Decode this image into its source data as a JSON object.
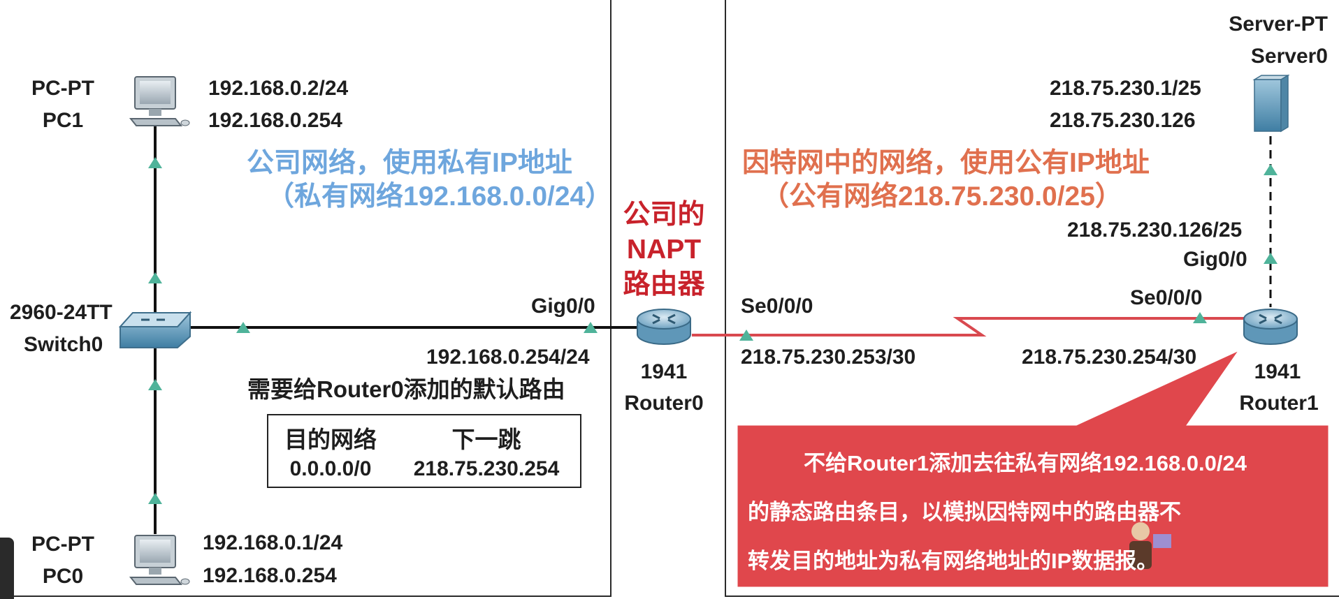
{
  "left_network": {
    "pc1": {
      "type": "PC-PT",
      "name": "PC1",
      "ip": "192.168.0.2/24",
      "gateway": "192.168.0.254"
    },
    "pc0": {
      "type": "PC-PT",
      "name": "PC0",
      "ip": "192.168.0.1/24",
      "gateway": "192.168.0.254"
    },
    "switch": {
      "model": "2960-24TT",
      "name": "Switch0"
    },
    "caption_line1": "公司网络，使用私有IP地址",
    "caption_line2": "（私有网络192.168.0.0/24）",
    "default_route_title": "需要给Router0添加的默认路由",
    "route_table": {
      "headers": [
        "目的网络",
        "下一跳"
      ],
      "row": [
        "0.0.0.0/0",
        "218.75.230.254"
      ]
    }
  },
  "router0": {
    "title_lines": [
      "公司的",
      "NAPT",
      "路由器"
    ],
    "model": "1941",
    "name": "Router0",
    "gig_port": "Gig0/0",
    "gig_ip": "192.168.0.254/24",
    "se_port": "Se0/0/0",
    "se_ip": "218.75.230.253/30"
  },
  "right_network": {
    "caption_line1": "因特网中的网络，使用公有IP地址",
    "caption_line2": "（公有网络218.75.230.0/25）",
    "server": {
      "type": "Server-PT",
      "name": "Server0",
      "ip": "218.75.230.1/25",
      "gateway": "218.75.230.126"
    },
    "router1": {
      "model": "1941",
      "name": "Router1",
      "gig_port": "Gig0/0",
      "gig_ip": "218.75.230.126/25",
      "se_port": "Se0/0/0",
      "se_ip": "218.75.230.254/30"
    },
    "callout_lines": [
      "不给Router1添加去往私有网络192.168.0.0/24",
      "的静态路由条目，以模拟因特网中的路由器不",
      "转发目的地址为私有网络地址的IP数据报。"
    ]
  },
  "colors": {
    "private_caption": "#6ea6dd",
    "public_caption": "#e0704e",
    "router_title": "#c8222b",
    "serial_link": "#d9494f",
    "callout_fill": "#e0474c",
    "link_arrow": "#4fb39a"
  }
}
